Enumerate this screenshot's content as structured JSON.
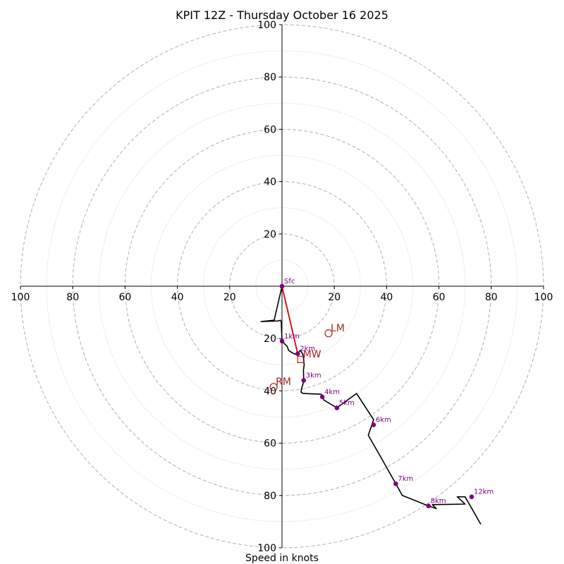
{
  "chart_data": {
    "type": "hodograph",
    "title": "KPIT 12Z - Thursday October 16 2025",
    "xlabel": "Speed in knots",
    "units": "knots",
    "range": [
      -100,
      100
    ],
    "ring_major": [
      20,
      40,
      60,
      80,
      100
    ],
    "ring_minor": [
      10,
      30,
      50,
      70,
      90
    ],
    "x_tick_labels": [
      "100",
      "80",
      "60",
      "40",
      "20",
      "20",
      "40",
      "60",
      "80",
      "100"
    ],
    "y_tick_labels": [
      "100",
      "80",
      "60",
      "40",
      "20",
      "20",
      "40",
      "60",
      "80",
      "100"
    ],
    "hodograph_trace": {
      "color": "#000000",
      "points": [
        [
          0,
          0
        ],
        [
          -3,
          -13
        ],
        [
          -8,
          -13.5
        ],
        [
          -1.5,
          -13.3
        ],
        [
          -0.6,
          -13
        ],
        [
          -0.3,
          -13.5
        ],
        [
          0,
          -21
        ],
        [
          2,
          -23
        ],
        [
          2.5,
          -24.5
        ],
        [
          4,
          -25.5
        ],
        [
          5,
          -26
        ],
        [
          6,
          -25.8
        ],
        [
          7,
          -24.5
        ],
        [
          8,
          -26
        ],
        [
          8.5,
          -30
        ],
        [
          8.2,
          -32
        ],
        [
          8.3,
          -36
        ],
        [
          8,
          -37.5
        ],
        [
          7.5,
          -39
        ],
        [
          7.3,
          -40.5
        ],
        [
          8,
          -41
        ],
        [
          15,
          -41.3
        ],
        [
          16,
          -43.5
        ],
        [
          21,
          -46.5
        ],
        [
          28.5,
          -41
        ],
        [
          35,
          -51
        ],
        [
          33,
          -57
        ],
        [
          37,
          -64
        ],
        [
          43.5,
          -75.5
        ],
        [
          46,
          -80
        ],
        [
          56,
          -84
        ],
        [
          59,
          -85
        ],
        [
          57.5,
          -83.5
        ],
        [
          70,
          -83.3
        ],
        [
          67,
          -80.5
        ],
        [
          70,
          -80.5
        ],
        [
          76,
          -91
        ]
      ]
    },
    "height_markers": [
      {
        "label": "Sfc",
        "u": 0,
        "v": 0
      },
      {
        "label": "1km",
        "u": 0,
        "v": -21
      },
      {
        "label": "2km",
        "u": 6,
        "v": -25.8
      },
      {
        "label": "3km",
        "u": 8.3,
        "v": -36
      },
      {
        "label": "4km",
        "u": 15.4,
        "v": -42.3
      },
      {
        "label": "5km",
        "u": 21,
        "v": -46.5
      },
      {
        "label": "6km",
        "u": 35,
        "v": -53
      },
      {
        "label": "7km",
        "u": 43.5,
        "v": -75.5
      },
      {
        "label": "8km",
        "u": 56,
        "v": -84
      },
      {
        "label": "12km",
        "u": 72.5,
        "v": -80.5
      }
    ],
    "shear_vector": {
      "from": [
        0,
        0
      ],
      "to": [
        6,
        -25.8
      ],
      "color": "#e00000"
    },
    "storm_motion": [
      {
        "label": "LM",
        "u": 17.8,
        "v": -18,
        "marker": "circle"
      },
      {
        "label": "MW",
        "u": 7.2,
        "v": -28,
        "marker": "square"
      },
      {
        "label": "RM",
        "u": -3.2,
        "v": -38.5,
        "marker": "circle"
      }
    ],
    "colors": {
      "marker": "#800080",
      "storm": "#b22222",
      "grid": "#b0b0b0"
    }
  }
}
